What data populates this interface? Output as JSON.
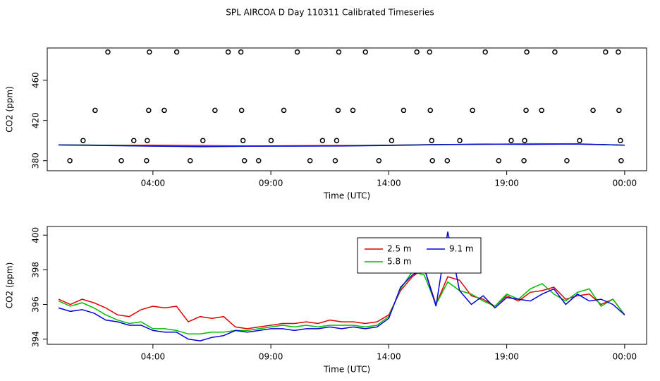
{
  "chart_data": [
    {
      "type": "scatter",
      "title": "SPL AIRCOA D  Day 110311  Calibrated Timeseries",
      "x_label": "Time (UTC)",
      "y_label": "CO2 (ppm)",
      "x": [
        2.09,
        3.85,
        5.01,
        7.19,
        7.73,
        10.12,
        11.88,
        13.01,
        15.19,
        15.73,
        18.09,
        19.85,
        21.04,
        23.19,
        23.73,
        1.55,
        3.82,
        4.48,
        6.63,
        7.76,
        9.55,
        11.85,
        12.48,
        14.63,
        15.76,
        17.55,
        19.82,
        20.48,
        22.66,
        23.76,
        1.04,
        3.19,
        3.76,
        6.12,
        7.82,
        9.01,
        11.19,
        11.79,
        14.12,
        15.82,
        17.01,
        19.19,
        19.76,
        22.09,
        23.82,
        0.48,
        2.66,
        3.73,
        5.58,
        7.88,
        8.48,
        10.66,
        11.73,
        13.58,
        15.85,
        16.48,
        18.66,
        19.73,
        21.55,
        23.85
      ],
      "values": [
        488,
        488,
        488,
        488,
        488,
        488,
        488,
        488,
        488,
        488,
        488,
        488,
        488,
        488,
        488,
        430,
        430,
        430,
        430,
        430,
        430,
        430,
        430,
        430,
        430,
        430,
        430,
        430,
        430,
        430,
        400,
        400,
        400,
        400,
        400,
        400,
        400,
        400,
        400,
        400,
        400,
        400,
        400,
        400,
        400,
        380,
        380,
        380,
        380,
        380,
        380,
        380,
        380,
        380,
        380,
        380,
        380,
        380,
        380,
        380
      ],
      "series": [
        {
          "color": "#dd0000",
          "x": [
            0,
            2,
            4,
            6,
            8,
            10,
            12,
            14,
            16,
            18,
            20,
            22,
            24
          ],
          "values": [
            395.8,
            395.3,
            395.3,
            395.0,
            394.6,
            394.9,
            395.0,
            395.4,
            396.0,
            396.3,
            396.7,
            396.5,
            395.4
          ]
        },
        {
          "color": "#00bb00",
          "x": [
            0,
            2,
            4,
            6,
            8,
            10,
            12,
            14,
            16,
            18,
            20,
            22,
            24
          ],
          "values": [
            395.7,
            395.4,
            394.6,
            394.3,
            394.5,
            394.7,
            394.8,
            395.3,
            396.0,
            396.2,
            396.9,
            396.7,
            395.4
          ]
        },
        {
          "color": "#0000dd",
          "x": [
            0,
            2,
            4,
            6,
            8,
            10,
            12,
            14,
            16,
            18,
            20,
            22,
            24
          ],
          "values": [
            395.6,
            395.1,
            394.5,
            393.9,
            394.4,
            394.5,
            394.6,
            395.2,
            395.9,
            396.5,
            396.2,
            396.6,
            395.4
          ]
        }
      ],
      "xlim": [
        -0.48,
        24.93
      ],
      "ylim": [
        370,
        492
      ],
      "yticks": [
        380,
        420,
        460
      ],
      "xticks": [
        {
          "value": 4,
          "label": "04:00"
        },
        {
          "value": 9,
          "label": "09:00"
        },
        {
          "value": 14,
          "label": "14:00"
        },
        {
          "value": 19,
          "label": "19:00"
        },
        {
          "value": 24,
          "label": "00:00"
        }
      ]
    },
    {
      "type": "line",
      "x_label": "Time (UTC)",
      "y_label": "CO2 (ppm)",
      "x": [
        0,
        0.5,
        1,
        1.5,
        2,
        2.5,
        3,
        3.5,
        4,
        4.5,
        5,
        5.5,
        6,
        6.5,
        7,
        7.5,
        8,
        8.5,
        9,
        9.5,
        10,
        10.5,
        11,
        11.5,
        12,
        12.5,
        13,
        13.5,
        14,
        14.5,
        15,
        15.5,
        16,
        16.5,
        17,
        17.5,
        18,
        18.5,
        19,
        19.5,
        20,
        20.5,
        21,
        21.5,
        22,
        22.5,
        23,
        23.5,
        24
      ],
      "series": [
        {
          "name": "2.5 m",
          "color": "#dd0000",
          "values": [
            396.3,
            396.0,
            396.3,
            396.1,
            395.8,
            395.4,
            395.3,
            395.7,
            395.9,
            395.8,
            395.9,
            395.0,
            395.3,
            395.2,
            395.3,
            394.7,
            394.6,
            394.7,
            394.8,
            394.9,
            394.9,
            395.0,
            394.9,
            395.1,
            395.0,
            395.0,
            394.9,
            395.0,
            395.4,
            396.8,
            397.6,
            398.1,
            396.0,
            397.6,
            397.4,
            396.5,
            396.3,
            395.9,
            396.5,
            396.2,
            396.7,
            396.8,
            397.0,
            396.3,
            396.5,
            396.6,
            396.0,
            396.3,
            395.4
          ]
        },
        {
          "name": "5.8 m",
          "color": "#00bb00",
          "values": [
            396.2,
            395.9,
            396.1,
            395.8,
            395.4,
            395.1,
            394.9,
            395.0,
            394.6,
            394.6,
            394.5,
            394.3,
            394.3,
            394.4,
            394.4,
            394.5,
            394.5,
            394.6,
            394.7,
            394.8,
            394.7,
            394.8,
            394.7,
            394.8,
            394.8,
            394.8,
            394.7,
            394.8,
            395.3,
            396.9,
            397.9,
            397.7,
            396.0,
            397.3,
            396.8,
            396.6,
            396.2,
            395.9,
            396.6,
            396.3,
            396.9,
            397.2,
            396.6,
            396.2,
            396.7,
            396.9,
            395.9,
            396.3,
            395.4
          ]
        },
        {
          "name": "9.1 m",
          "color": "#0000dd",
          "values": [
            395.8,
            395.6,
            395.7,
            395.5,
            395.1,
            395.0,
            394.8,
            394.8,
            394.5,
            394.4,
            394.4,
            394.0,
            393.9,
            394.1,
            394.2,
            394.5,
            394.4,
            394.5,
            394.6,
            394.6,
            394.5,
            394.6,
            394.6,
            394.7,
            394.6,
            394.7,
            394.6,
            394.7,
            395.2,
            397.0,
            397.7,
            398.1,
            395.9,
            400.2,
            396.8,
            396.0,
            396.5,
            395.8,
            396.4,
            396.3,
            396.2,
            396.6,
            396.9,
            396.0,
            396.6,
            396.2,
            396.3,
            396.0,
            395.4
          ]
        }
      ],
      "legend": "top",
      "xlim": [
        -0.48,
        24.93
      ],
      "ylim": [
        393.7,
        400.5
      ],
      "yticks": [
        394,
        396,
        398,
        400
      ],
      "xticks": [
        {
          "value": 4,
          "label": "04:00"
        },
        {
          "value": 9,
          "label": "09:00"
        },
        {
          "value": 14,
          "label": "14:00"
        },
        {
          "value": 19,
          "label": "19:00"
        },
        {
          "value": 24,
          "label": "00:00"
        }
      ]
    }
  ]
}
